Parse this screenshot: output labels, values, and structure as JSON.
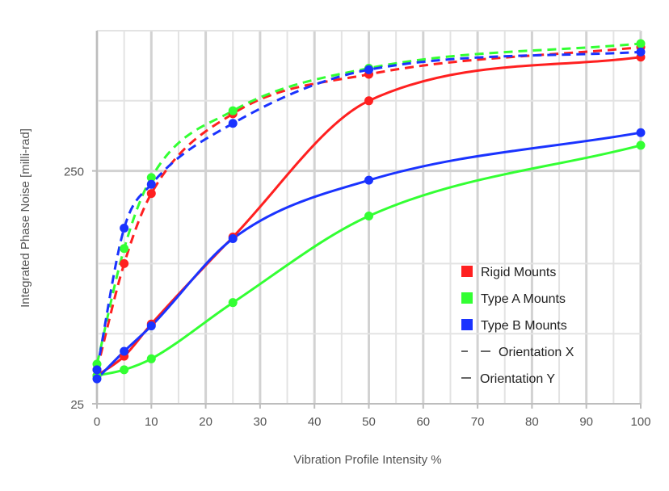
{
  "chart_data": {
    "type": "line",
    "title": "",
    "xlabel": "Vibration  Profile  Intensity  %",
    "ylabel": "Integrated  Phase  Noise  [milli-rad]",
    "x_ticks": [
      "0",
      "10",
      "20",
      "30",
      "40",
      "50",
      "60",
      "70",
      "80",
      "90",
      "100"
    ],
    "y_ticks": [
      {
        "label": "25",
        "value": 25
      },
      {
        "label": "250",
        "value": 250
      }
    ],
    "xlim": [
      0,
      100
    ],
    "ylim": [
      25,
      1000
    ],
    "y_scale": "log",
    "grid": true,
    "legend_position": "bottom-right",
    "series": [
      {
        "name": "Rigid Mounts",
        "orientation": "X",
        "color": "#ff2020",
        "dashed": true,
        "x": [
          0,
          5,
          10,
          25,
          50,
          100
        ],
        "y": [
          35,
          100,
          200,
          440,
          650,
          850
        ]
      },
      {
        "name": "Type A Mounts",
        "orientation": "X",
        "color": "#33ff33",
        "dashed": true,
        "x": [
          0,
          5,
          10,
          25,
          50,
          100
        ],
        "y": [
          37,
          116,
          234,
          453,
          690,
          880
        ]
      },
      {
        "name": "Type B Mounts",
        "orientation": "X",
        "color": "#1a33ff",
        "dashed": true,
        "x": [
          0,
          5,
          10,
          25,
          50,
          100
        ],
        "y": [
          35,
          142,
          219,
          400,
          680,
          810
        ]
      },
      {
        "name": "Rigid Mounts",
        "orientation": "Y",
        "color": "#ff2020",
        "dashed": false,
        "x": [
          0,
          5,
          10,
          25,
          50,
          100
        ],
        "y": [
          33,
          40,
          55,
          130,
          500,
          770
        ]
      },
      {
        "name": "Type A Mounts",
        "orientation": "Y",
        "color": "#33ff33",
        "dashed": false,
        "x": [
          0,
          5,
          10,
          25,
          50,
          100
        ],
        "y": [
          33,
          35,
          39,
          68,
          160,
          322
        ]
      },
      {
        "name": "Type B Mounts",
        "orientation": "Y",
        "color": "#1a33ff",
        "dashed": false,
        "x": [
          0,
          5,
          10,
          25,
          50,
          100
        ],
        "y": [
          32,
          42,
          54,
          128,
          228,
          365
        ]
      }
    ],
    "legend": {
      "items": [
        {
          "label": "Rigid  Mounts",
          "color": "#ff2020",
          "kind": "swatch"
        },
        {
          "label": "Type A Mounts",
          "color": "#33ff33",
          "kind": "swatch"
        },
        {
          "label": "Type B Mounts",
          "color": "#1a33ff",
          "kind": "swatch"
        },
        {
          "label": "Orientation  X",
          "kind": "dashed"
        },
        {
          "label": "Orientation  Y",
          "kind": "solid"
        }
      ]
    }
  }
}
